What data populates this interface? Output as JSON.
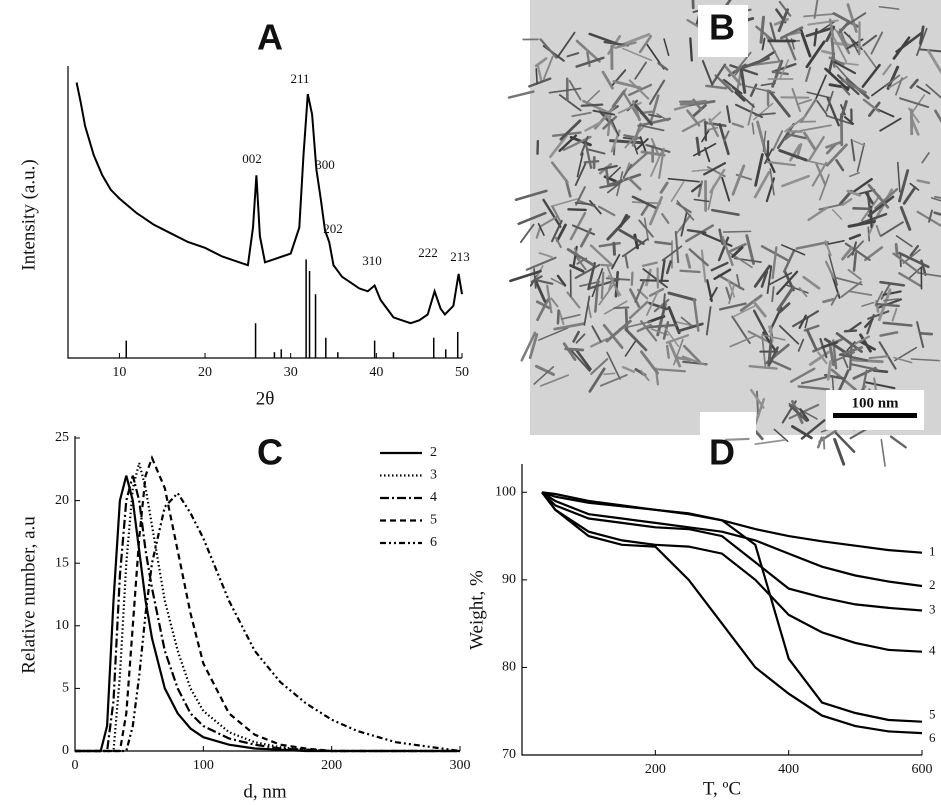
{
  "chart_data": [
    {
      "type": "line",
      "title": "A",
      "xlabel": "2θ",
      "ylabel": "Intensity (a.u.)",
      "x": [
        5,
        5.5,
        6,
        7,
        8,
        9,
        10,
        12,
        14,
        16,
        18,
        20,
        22,
        24,
        25,
        25.6,
        26,
        26.4,
        27,
        28,
        29,
        30,
        31,
        31.5,
        32,
        32.5,
        33,
        33.5,
        34,
        34.5,
        35,
        36,
        37,
        38,
        39,
        39.8,
        40.5,
        42,
        43,
        44,
        45,
        46,
        46.8,
        47.5,
        48,
        49,
        49.6,
        50
      ],
      "values": [
        95,
        88,
        80,
        70,
        63,
        58,
        55,
        50,
        46,
        43,
        40,
        38,
        35,
        33,
        32,
        45,
        63,
        42,
        33,
        34,
        35,
        36,
        45,
        70,
        91,
        84,
        65,
        55,
        44,
        40,
        32,
        28,
        26,
        24,
        23,
        25,
        20,
        14,
        13,
        12,
        13,
        15,
        23,
        17,
        15,
        18,
        29,
        22
      ],
      "reference": {
        "x": [
          10.8,
          25.9,
          28.1,
          28.9,
          31.8,
          32.2,
          32.9,
          34.1,
          35.5,
          39.8,
          42.0,
          46.7,
          48.1,
          49.5
        ],
        "values": [
          6,
          12,
          2,
          3,
          34,
          30,
          22,
          7,
          2,
          6,
          2,
          7,
          3,
          9
        ]
      },
      "peaks": [
        "002",
        "211",
        "300",
        "202",
        "310",
        "222",
        "213"
      ],
      "xlim": [
        4,
        50
      ],
      "ylim": [
        0,
        100
      ],
      "xticks": [
        10,
        20,
        30,
        40,
        50
      ],
      "color": "#000"
    },
    {
      "type": "image",
      "title": "B",
      "scale_bar": "100 nm"
    },
    {
      "type": "line",
      "title": "C",
      "xlabel": "d, nm",
      "ylabel": "Relative number, a.u",
      "x": [
        0,
        20,
        25,
        30,
        35,
        40,
        45,
        50,
        55,
        60,
        70,
        80,
        90,
        100,
        120,
        140,
        160,
        180,
        200,
        220,
        250,
        300
      ],
      "series": [
        {
          "name": "2",
          "color": "#000",
          "style": "solid",
          "values": [
            0,
            0,
            2,
            12,
            20,
            22,
            20,
            16,
            12,
            9,
            5,
            3,
            1.8,
            1.1,
            0.5,
            0.2,
            0.1,
            0,
            0,
            0,
            0,
            0
          ]
        },
        {
          "name": "3",
          "color": "#000",
          "style": "dotted",
          "values": [
            0,
            0,
            0,
            0,
            6,
            15,
            21,
            23,
            21,
            18,
            12,
            8,
            5,
            3.2,
            1.5,
            0.7,
            0.3,
            0.1,
            0,
            0,
            0,
            0
          ]
        },
        {
          "name": "4",
          "color": "#000",
          "style": "dash-dot",
          "values": [
            0,
            0,
            0,
            4,
            14,
            20,
            22,
            20,
            16,
            13,
            8,
            5,
            3,
            2,
            1,
            0.5,
            0.2,
            0.1,
            0,
            0,
            0,
            0
          ]
        },
        {
          "name": "5",
          "color": "#000",
          "style": "dashed",
          "values": [
            0,
            0,
            0,
            0,
            0,
            3,
            10,
            17,
            22,
            23.4,
            21,
            16,
            11,
            7,
            3,
            1.3,
            0.5,
            0.2,
            0,
            0,
            0,
            0
          ]
        },
        {
          "name": "6",
          "color": "#000",
          "style": "dash-dot-dot",
          "values": [
            0,
            0,
            0,
            0,
            0,
            0,
            2,
            6,
            11,
            15,
            19.5,
            20.6,
            19,
            17,
            12,
            8,
            5.5,
            3.8,
            2.5,
            1.6,
            0.7,
            0
          ]
        }
      ],
      "xlim": [
        0,
        300
      ],
      "ylim": [
        0,
        25
      ],
      "xticks": [
        0,
        100,
        200,
        300
      ],
      "yticks": [
        0,
        5,
        10,
        15,
        20,
        25
      ]
    },
    {
      "type": "line",
      "title": "D",
      "xlabel": "T, ºC",
      "ylabel": "Weight, %",
      "x": [
        30,
        50,
        100,
        150,
        200,
        250,
        300,
        350,
        400,
        450,
        500,
        550,
        600
      ],
      "series": [
        {
          "name": "1",
          "color": "#000",
          "style": "solid",
          "values": [
            100,
            99.5,
            98.8,
            98.4,
            98,
            97.6,
            96.8,
            95.8,
            95,
            94.4,
            93.9,
            93.4,
            93.1
          ]
        },
        {
          "name": "2",
          "color": "#000",
          "style": "solid",
          "values": [
            100,
            99,
            97.5,
            97,
            96.5,
            96,
            95.5,
            94.5,
            93,
            91.5,
            90.5,
            89.8,
            89.3
          ]
        },
        {
          "name": "3",
          "color": "#000",
          "style": "solid",
          "values": [
            100,
            98.5,
            97,
            96.5,
            96,
            95.8,
            95,
            92,
            89,
            88,
            87.2,
            86.8,
            86.5
          ]
        },
        {
          "name": "4",
          "color": "#000",
          "style": "solid",
          "values": [
            100,
            98,
            95.5,
            94.5,
            94,
            93.8,
            93,
            90,
            86,
            84,
            82.8,
            82,
            81.8
          ]
        },
        {
          "name": "5",
          "color": "#000",
          "style": "solid",
          "values": [
            100,
            99.8,
            99,
            98.5,
            98,
            97.5,
            96.8,
            94,
            81,
            76,
            74.8,
            74,
            73.8
          ]
        },
        {
          "name": "6",
          "color": "#000",
          "style": "solid",
          "values": [
            100,
            98,
            95,
            94,
            93.8,
            90,
            85,
            80,
            77,
            74.5,
            73.3,
            72.7,
            72.5
          ]
        }
      ],
      "xlim": [
        0,
        600
      ],
      "ylim": [
        70,
        103
      ],
      "xticks": [
        200,
        400,
        600
      ],
      "yticks": [
        70,
        80,
        90,
        100
      ]
    }
  ]
}
